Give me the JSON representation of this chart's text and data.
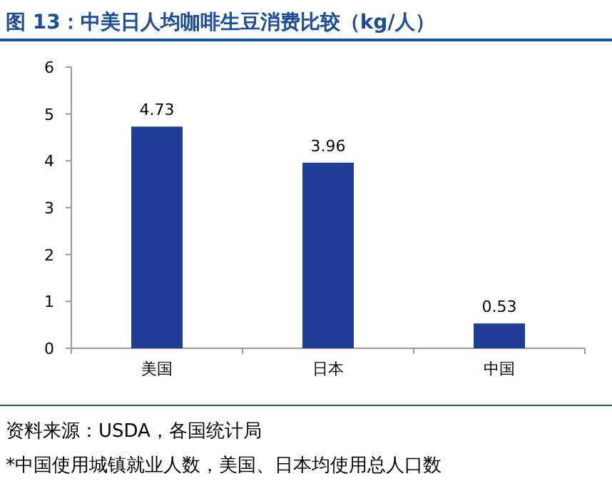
{
  "chart_data": {
    "type": "bar",
    "title": "图 13：中美日人均咖啡生豆消费比较（kg/人）",
    "categories": [
      "美国",
      "日本",
      "中国"
    ],
    "values": [
      4.73,
      3.96,
      0.53
    ],
    "color": "#1f3f99",
    "ylim": [
      0,
      6
    ],
    "yticks": [
      0,
      1,
      2,
      3,
      4,
      5,
      6
    ],
    "data_labels": true,
    "annotations": [
      "资料来源：USDA，各国统计局",
      "*中国使用城镇就业人数，美国、日本均使用总人口数"
    ]
  }
}
